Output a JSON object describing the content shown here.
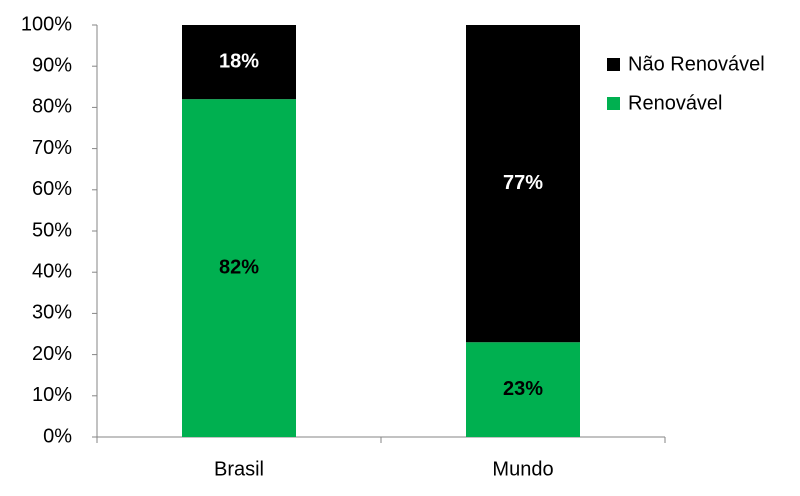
{
  "chart_data": {
    "type": "stacked_bar",
    "categories": [
      "Brasil",
      "Mundo"
    ],
    "series": [
      {
        "name": "Renovável",
        "color": "#00b050",
        "label_color": "#000000",
        "values": [
          82,
          23
        ],
        "value_labels": [
          "82%",
          "23%"
        ]
      },
      {
        "name": "Não Renovável",
        "color": "#000000",
        "label_color": "#ffffff",
        "values": [
          18,
          77
        ],
        "value_labels": [
          "18%",
          "77%"
        ]
      }
    ],
    "ylim": [
      0,
      100
    ],
    "yticks": [
      {
        "value": 0,
        "label": "0%"
      },
      {
        "value": 10,
        "label": "10%"
      },
      {
        "value": 20,
        "label": "20%"
      },
      {
        "value": 30,
        "label": "30%"
      },
      {
        "value": 40,
        "label": "40%"
      },
      {
        "value": 50,
        "label": "50%"
      },
      {
        "value": 60,
        "label": "60%"
      },
      {
        "value": 70,
        "label": "70%"
      },
      {
        "value": 80,
        "label": "80%"
      },
      {
        "value": 90,
        "label": "90%"
      },
      {
        "value": 100,
        "label": "100%"
      }
    ],
    "legend": "right"
  }
}
